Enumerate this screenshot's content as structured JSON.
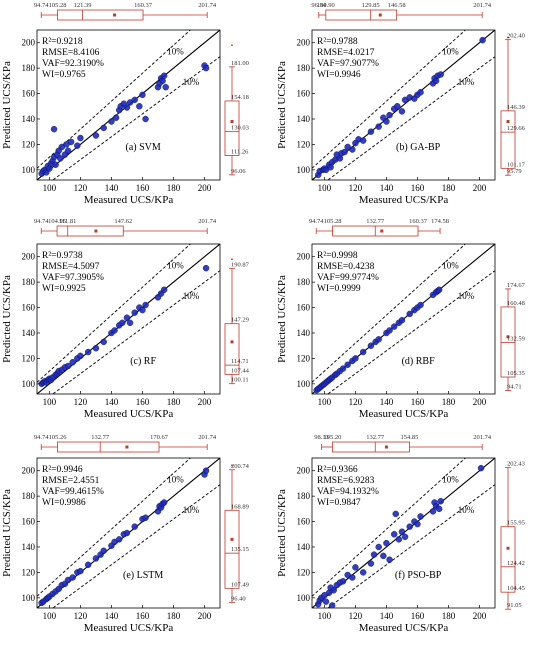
{
  "colors": {
    "box": "#c0392b",
    "point": "#1f2bb5",
    "point_edge": "#0a1270",
    "line": "#000000"
  },
  "chart_data": [
    {
      "type": "scatter",
      "panel_label": "(a) SVM",
      "xlabel": "Measured UCS/KPa",
      "ylabel": "Predicted UCS/KPa",
      "xlim": [
        92,
        210
      ],
      "ylim": [
        92,
        210
      ],
      "xticks": [
        100,
        120,
        140,
        160,
        180,
        200
      ],
      "yticks": [
        100,
        120,
        140,
        160,
        180,
        200
      ],
      "band_label": "10%",
      "metrics": [
        "R²=0.9218",
        "RMSE=8.4106",
        "VAF=92.3190%",
        "WI=0.9765"
      ],
      "top_box": {
        "min": 94.74,
        "q1": 105.28,
        "median": 121.39,
        "q3": 160.37,
        "max": 201.74,
        "mean": 142,
        "outlier": null,
        "labels": [
          "94.74",
          "105.28",
          "121.39",
          "160.37",
          "201.74"
        ]
      },
      "right_box": {
        "min": 96.06,
        "q1": 111.26,
        "median": 130.03,
        "q3": 154.18,
        "max": 181.0,
        "mean": 138,
        "outlier": 198,
        "labels": [
          "96.06",
          "111.26",
          "130.03",
          "154.18",
          "181.00"
        ]
      },
      "points": [
        [
          95,
          97
        ],
        [
          96,
          99
        ],
        [
          97,
          100
        ],
        [
          98,
          98
        ],
        [
          99,
          103
        ],
        [
          100,
          101
        ],
        [
          101,
          105
        ],
        [
          102,
          107
        ],
        [
          103,
          110
        ],
        [
          104,
          104
        ],
        [
          105,
          112
        ],
        [
          106,
          115
        ],
        [
          107,
          109
        ],
        [
          108,
          118
        ],
        [
          110,
          112
        ],
        [
          111,
          120
        ],
        [
          112,
          115
        ],
        [
          114,
          122
        ],
        [
          103,
          132
        ],
        [
          118,
          119
        ],
        [
          120,
          125
        ],
        [
          130,
          127
        ],
        [
          135,
          133
        ],
        [
          140,
          138
        ],
        [
          143,
          141
        ],
        [
          145,
          147
        ],
        [
          146,
          150
        ],
        [
          148,
          152
        ],
        [
          150,
          149
        ],
        [
          152,
          153
        ],
        [
          155,
          155
        ],
        [
          158,
          150
        ],
        [
          160,
          159
        ],
        [
          162,
          140
        ],
        [
          170,
          165
        ],
        [
          171,
          168
        ],
        [
          172,
          172
        ],
        [
          173,
          170
        ],
        [
          174,
          174
        ],
        [
          175,
          165
        ],
        [
          200,
          182
        ],
        [
          201,
          180
        ]
      ]
    },
    {
      "type": "scatter",
      "panel_label": "(b) GA-BP",
      "xlabel": "Measured UCS/KPa",
      "ylabel": "Predicted UCS/KPa",
      "xlim": [
        92,
        210
      ],
      "ylim": [
        92,
        210
      ],
      "xticks": [
        100,
        120,
        140,
        160,
        180,
        200
      ],
      "yticks": [
        100,
        120,
        140,
        160,
        180,
        200
      ],
      "band_label": "10%",
      "metrics": [
        "R²=0.9788",
        "RMSE=4.0217",
        "VAF=97.9077%",
        "WI=0.9946"
      ],
      "top_box": {
        "min": 96.34,
        "q1": 100.9,
        "median": 129.85,
        "q3": 146.58,
        "max": 201.74,
        "mean": 136,
        "outlier": null,
        "labels": [
          "96.34",
          "100.90",
          "129.85",
          "146.58",
          "201.74"
        ]
      },
      "right_box": {
        "min": 95.79,
        "q1": 101.17,
        "median": 129.66,
        "q3": 146.39,
        "max": 202.4,
        "mean": 138,
        "outlier": 204,
        "labels": [
          "95.79",
          "101.17",
          "129.66",
          "146.39",
          "202.40"
        ]
      },
      "points": [
        [
          96,
          96
        ],
        [
          97,
          99
        ],
        [
          99,
          100
        ],
        [
          100,
          101
        ],
        [
          101,
          100
        ],
        [
          103,
          104
        ],
        [
          104,
          102
        ],
        [
          105,
          106
        ],
        [
          107,
          108
        ],
        [
          108,
          112
        ],
        [
          110,
          109
        ],
        [
          111,
          113
        ],
        [
          113,
          114
        ],
        [
          115,
          118
        ],
        [
          118,
          116
        ],
        [
          120,
          121
        ],
        [
          122,
          124
        ],
        [
          125,
          123
        ],
        [
          130,
          130
        ],
        [
          135,
          134
        ],
        [
          138,
          141
        ],
        [
          140,
          138
        ],
        [
          142,
          143
        ],
        [
          145,
          148
        ],
        [
          147,
          150
        ],
        [
          150,
          146
        ],
        [
          152,
          155
        ],
        [
          155,
          157
        ],
        [
          158,
          156
        ],
        [
          160,
          159
        ],
        [
          162,
          161
        ],
        [
          170,
          168
        ],
        [
          171,
          172
        ],
        [
          172,
          170
        ],
        [
          173,
          174
        ],
        [
          175,
          175
        ],
        [
          202,
          202
        ]
      ]
    },
    {
      "type": "scatter",
      "panel_label": "(c) RF",
      "xlabel": "Measured UCS/KPa",
      "ylabel": "Predicted UCS/KPa",
      "xlim": [
        92,
        210
      ],
      "ylim": [
        92,
        210
      ],
      "xticks": [
        100,
        120,
        140,
        160,
        180,
        200
      ],
      "yticks": [
        100,
        120,
        140,
        160,
        180,
        200
      ],
      "band_label": "10%",
      "metrics": [
        "R²=0.9738",
        "RMSE=4.5097",
        "VAF=97.3905%",
        "WI=0.9925"
      ],
      "top_box": {
        "min": 94.74,
        "q1": 104.95,
        "median": 111.81,
        "q3": 147.62,
        "max": 201.74,
        "mean": 130,
        "outlier": null,
        "labels": [
          "94.74",
          "104.95",
          "111.81",
          "147.62",
          "201.74"
        ]
      },
      "right_box": {
        "min": 100.11,
        "q1": 107.44,
        "median": 114.71,
        "q3": 147.29,
        "max": 190.87,
        "mean": 133,
        "outlier": 198,
        "labels": [
          "100.11",
          "107.44",
          "114.71",
          "147.29",
          "190.87"
        ]
      },
      "points": [
        [
          95,
          100
        ],
        [
          96,
          101
        ],
        [
          97,
          102
        ],
        [
          98,
          101
        ],
        [
          99,
          103
        ],
        [
          100,
          104
        ],
        [
          101,
          103
        ],
        [
          102,
          105
        ],
        [
          104,
          107
        ],
        [
          105,
          108
        ],
        [
          106,
          110
        ],
        [
          108,
          111
        ],
        [
          110,
          113
        ],
        [
          112,
          114
        ],
        [
          115,
          117
        ],
        [
          118,
          120
        ],
        [
          120,
          122
        ],
        [
          125,
          125
        ],
        [
          130,
          128
        ],
        [
          135,
          133
        ],
        [
          140,
          140
        ],
        [
          142,
          142
        ],
        [
          145,
          146
        ],
        [
          147,
          148
        ],
        [
          150,
          152
        ],
        [
          152,
          148
        ],
        [
          155,
          156
        ],
        [
          158,
          160
        ],
        [
          160,
          158
        ],
        [
          162,
          162
        ],
        [
          170,
          168
        ],
        [
          172,
          171
        ],
        [
          174,
          174
        ],
        [
          201,
          191
        ]
      ]
    },
    {
      "type": "scatter",
      "panel_label": "(d) RBF",
      "xlabel": "Measured UCS/KPa",
      "ylabel": "Predicted UCS/KPa",
      "xlim": [
        92,
        210
      ],
      "ylim": [
        92,
        210
      ],
      "xticks": [
        100,
        120,
        140,
        160,
        180,
        200
      ],
      "yticks": [
        100,
        120,
        140,
        160,
        180,
        200
      ],
      "band_label": "10%",
      "metrics": [
        "R²=0.9998",
        "RMSE=0.4238",
        "VAF=99.9774%",
        "WI=0.9999"
      ],
      "top_box": {
        "min": 94.74,
        "q1": 105.28,
        "median": 132.77,
        "q3": 160.37,
        "max": 174.58,
        "mean": 137,
        "outlier": null,
        "labels": [
          "94.74",
          "105.28",
          "132.77",
          "160.37",
          "174.58"
        ]
      },
      "right_box": {
        "min": 94.71,
        "q1": 105.35,
        "median": 132.59,
        "q3": 160.48,
        "max": 174.67,
        "mean": 137,
        "outlier": null,
        "labels": [
          "94.71",
          "105.35",
          "132.59",
          "160.48",
          "174.67"
        ]
      },
      "points": [
        [
          95,
          95
        ],
        [
          96,
          96
        ],
        [
          97,
          97
        ],
        [
          98,
          98
        ],
        [
          99,
          99
        ],
        [
          100,
          100
        ],
        [
          101,
          101
        ],
        [
          102,
          102
        ],
        [
          103,
          103
        ],
        [
          104,
          104
        ],
        [
          105,
          105
        ],
        [
          107,
          107
        ],
        [
          108,
          108
        ],
        [
          110,
          110
        ],
        [
          112,
          112
        ],
        [
          115,
          115
        ],
        [
          118,
          118
        ],
        [
          120,
          120
        ],
        [
          125,
          125
        ],
        [
          130,
          130
        ],
        [
          133,
          133
        ],
        [
          135,
          135
        ],
        [
          140,
          140
        ],
        [
          142,
          142
        ],
        [
          145,
          145
        ],
        [
          148,
          148
        ],
        [
          150,
          150
        ],
        [
          155,
          155
        ],
        [
          158,
          158
        ],
        [
          160,
          160
        ],
        [
          162,
          162
        ],
        [
          170,
          170
        ],
        [
          172,
          172
        ],
        [
          173,
          173
        ],
        [
          174,
          174
        ]
      ]
    },
    {
      "type": "scatter",
      "panel_label": "(e) LSTM",
      "xlabel": "Measured UCS/KPa",
      "ylabel": "Predicted UCS/KPa",
      "xlim": [
        92,
        210
      ],
      "ylim": [
        92,
        210
      ],
      "xticks": [
        100,
        120,
        140,
        160,
        180,
        200
      ],
      "yticks": [
        100,
        120,
        140,
        160,
        180,
        200
      ],
      "band_label": "10%",
      "metrics": [
        "R²=0.9946",
        "RMSE=2.4551",
        "VAF=99.4615%",
        "WI=0.9986"
      ],
      "top_box": {
        "min": 94.74,
        "q1": 105.26,
        "median": 132.77,
        "q3": 170.67,
        "max": 201.74,
        "mean": 150,
        "outlier": null,
        "labels": [
          "94.74",
          "105.26",
          "132.77",
          "170.67",
          "201.74"
        ]
      },
      "right_box": {
        "min": 96.4,
        "q1": 107.49,
        "median": 135.15,
        "q3": 168.89,
        "max": 200.74,
        "mean": 146,
        "outlier": 204,
        "labels": [
          "96.40",
          "107.49",
          "135.15",
          "168.89",
          "200.74"
        ]
      },
      "points": [
        [
          95,
          96
        ],
        [
          96,
          97
        ],
        [
          98,
          99
        ],
        [
          99,
          100
        ],
        [
          100,
          101
        ],
        [
          102,
          103
        ],
        [
          104,
          105
        ],
        [
          106,
          107
        ],
        [
          108,
          110
        ],
        [
          110,
          111
        ],
        [
          112,
          114
        ],
        [
          115,
          116
        ],
        [
          118,
          120
        ],
        [
          120,
          121
        ],
        [
          125,
          126
        ],
        [
          130,
          131
        ],
        [
          133,
          134
        ],
        [
          135,
          137
        ],
        [
          140,
          141
        ],
        [
          142,
          144
        ],
        [
          145,
          146
        ],
        [
          148,
          150
        ],
        [
          150,
          151
        ],
        [
          155,
          156
        ],
        [
          160,
          162
        ],
        [
          162,
          163
        ],
        [
          170,
          168
        ],
        [
          171,
          172
        ],
        [
          172,
          171
        ],
        [
          173,
          174
        ],
        [
          174,
          175
        ],
        [
          200,
          197
        ],
        [
          201,
          200
        ]
      ]
    },
    {
      "type": "scatter",
      "panel_label": "(f) PSO-BP",
      "xlabel": "Measured UCS/KPa",
      "ylabel": "Predicted UCS/KPa",
      "xlim": [
        92,
        210
      ],
      "ylim": [
        92,
        210
      ],
      "xticks": [
        100,
        120,
        140,
        160,
        180,
        200
      ],
      "yticks": [
        100,
        120,
        140,
        160,
        180,
        200
      ],
      "band_label": "10%",
      "metrics": [
        "R²=0.9366",
        "RMSE=6.9283",
        "VAF=94.1932%",
        "WI=0.9847"
      ],
      "top_box": {
        "min": 98.13,
        "q1": 105.2,
        "median": 132.77,
        "q3": 154.85,
        "max": 201.74,
        "mean": 140,
        "outlier": null,
        "labels": [
          "98.13",
          "105.20",
          "132.77",
          "154.85",
          "201.74"
        ]
      },
      "right_box": {
        "min": 91.05,
        "q1": 104.45,
        "median": 124.42,
        "q3": 155.95,
        "max": 202.43,
        "mean": 139,
        "outlier": null,
        "labels": [
          "91.05",
          "104.45",
          "124.42",
          "155.95",
          "202.43"
        ]
      },
      "points": [
        [
          96,
          95
        ],
        [
          97,
          98
        ],
        [
          98,
          100
        ],
        [
          100,
          102
        ],
        [
          101,
          97
        ],
        [
          103,
          104
        ],
        [
          104,
          108
        ],
        [
          105,
          94
        ],
        [
          106,
          106
        ],
        [
          108,
          110
        ],
        [
          110,
          112
        ],
        [
          112,
          113
        ],
        [
          115,
          118
        ],
        [
          118,
          116
        ],
        [
          120,
          124
        ],
        [
          125,
          120
        ],
        [
          130,
          127
        ],
        [
          132,
          134
        ],
        [
          135,
          140
        ],
        [
          138,
          133
        ],
        [
          140,
          143
        ],
        [
          142,
          130
        ],
        [
          145,
          150
        ],
        [
          146,
          166
        ],
        [
          148,
          146
        ],
        [
          150,
          152
        ],
        [
          152,
          148
        ],
        [
          155,
          156
        ],
        [
          158,
          160
        ],
        [
          160,
          158
        ],
        [
          162,
          164
        ],
        [
          170,
          168
        ],
        [
          171,
          175
        ],
        [
          172,
          172
        ],
        [
          174,
          170
        ],
        [
          175,
          176
        ],
        [
          201,
          202
        ]
      ]
    }
  ]
}
